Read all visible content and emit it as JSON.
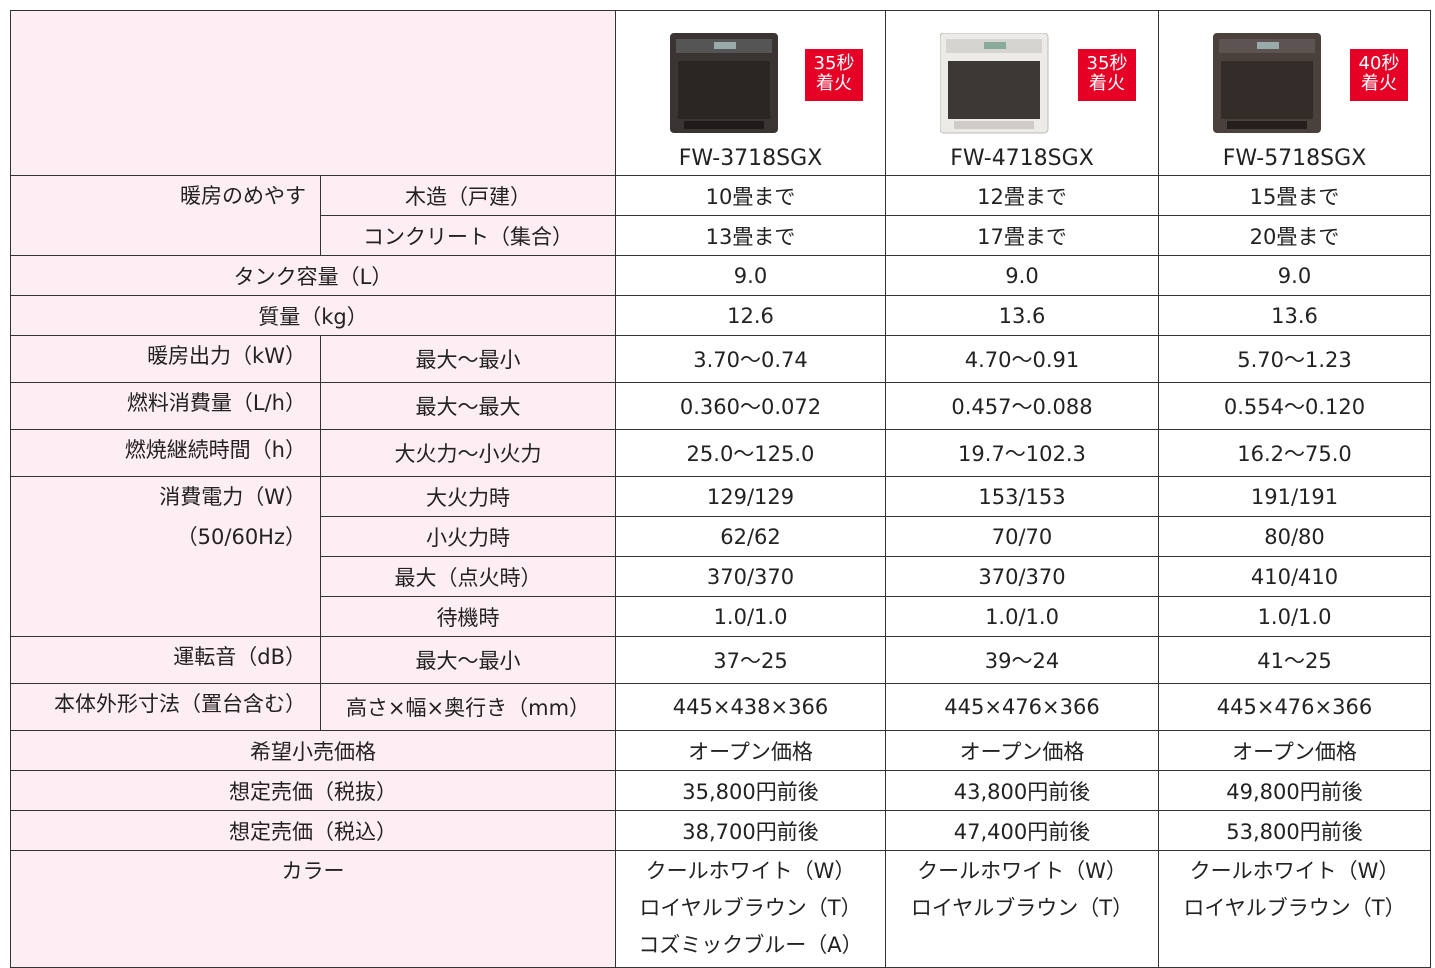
{
  "header": {
    "models": [
      {
        "name": "FW-3718SGX",
        "badge": [
          "35秒",
          "着火"
        ]
      },
      {
        "name": "FW-4718SGX",
        "badge": [
          "35秒",
          "着火"
        ]
      },
      {
        "name": "FW-5718SGX",
        "badge": [
          "40秒",
          "着火"
        ]
      }
    ]
  },
  "rows": [
    {
      "label": [
        "暖房のめやす"
      ],
      "items": [
        {
          "sub": "木造（戸建）",
          "values": [
            "10畳まで",
            "12畳まで",
            "15畳まで"
          ]
        },
        {
          "sub": "コンクリート（集合）",
          "values": [
            "13畳まで",
            "17畳まで",
            "20畳まで"
          ]
        }
      ]
    },
    {
      "label": [
        "タンク容量（L）"
      ],
      "values": [
        "9.0",
        "9.0",
        "9.0"
      ]
    },
    {
      "label": [
        "質量（kg）"
      ],
      "values": [
        "12.6",
        "13.6",
        "13.6"
      ]
    },
    {
      "label": [
        "暖房出力（kW）"
      ],
      "items": [
        {
          "sub": "最大～最小",
          "values": [
            "3.70～0.74",
            "4.70～0.91",
            "5.70～1.23"
          ]
        }
      ]
    },
    {
      "label": [
        "燃料消費量（L/h）"
      ],
      "items": [
        {
          "sub": "最大～最大",
          "values": [
            "0.360～0.072",
            "0.457～0.088",
            "0.554～0.120"
          ]
        }
      ]
    },
    {
      "label": [
        "燃焼継続時間（h）"
      ],
      "items": [
        {
          "sub": "大火力～小火力",
          "values": [
            "25.0～125.0",
            "19.7～102.3",
            "16.2～75.0"
          ]
        }
      ]
    },
    {
      "label": [
        "消費電力（W）",
        "（50/60Hz）"
      ],
      "items": [
        {
          "sub": "大火力時",
          "values": [
            "129/129",
            "153/153",
            "191/191"
          ]
        },
        {
          "sub": "小火力時",
          "values": [
            "62/62",
            "70/70",
            "80/80"
          ]
        },
        {
          "sub": "最大（点火時）",
          "values": [
            "370/370",
            "370/370",
            "410/410"
          ]
        },
        {
          "sub": "待機時",
          "values": [
            "1.0/1.0",
            "1.0/1.0",
            "1.0/1.0"
          ]
        }
      ]
    },
    {
      "label": [
        "運転音（dB）"
      ],
      "items": [
        {
          "sub": "最大～最小",
          "values": [
            "37～25",
            "39～24",
            "41～25"
          ]
        }
      ]
    },
    {
      "label": [
        "本体外形寸法（置台含む）"
      ],
      "items": [
        {
          "sub": "高さ×幅×奥行き（mm）",
          "values": [
            "445×438×366",
            "445×476×366",
            "445×476×366"
          ]
        }
      ]
    },
    {
      "label": [
        "希望小売価格"
      ],
      "values": [
        "オープン価格",
        "オープン価格",
        "オープン価格"
      ]
    },
    {
      "label": [
        "想定売価（税抜）"
      ],
      "values": [
        "35,800円前後",
        "43,800円前後",
        "49,800円前後"
      ]
    },
    {
      "label": [
        "想定売価（税込）"
      ],
      "values": [
        "38,700円前後",
        "47,400円前後",
        "53,800円前後"
      ]
    },
    {
      "label": [
        "カラー"
      ],
      "values": [
        [
          "クールホワイト（W）",
          "ロイヤルブラウン（T）",
          "コズミックブルー（A）"
        ],
        [
          "クールホワイト（W）",
          "ロイヤルブラウン（T）"
        ],
        [
          "クールホワイト（W）",
          "ロイヤルブラウン（T）"
        ]
      ]
    }
  ]
}
